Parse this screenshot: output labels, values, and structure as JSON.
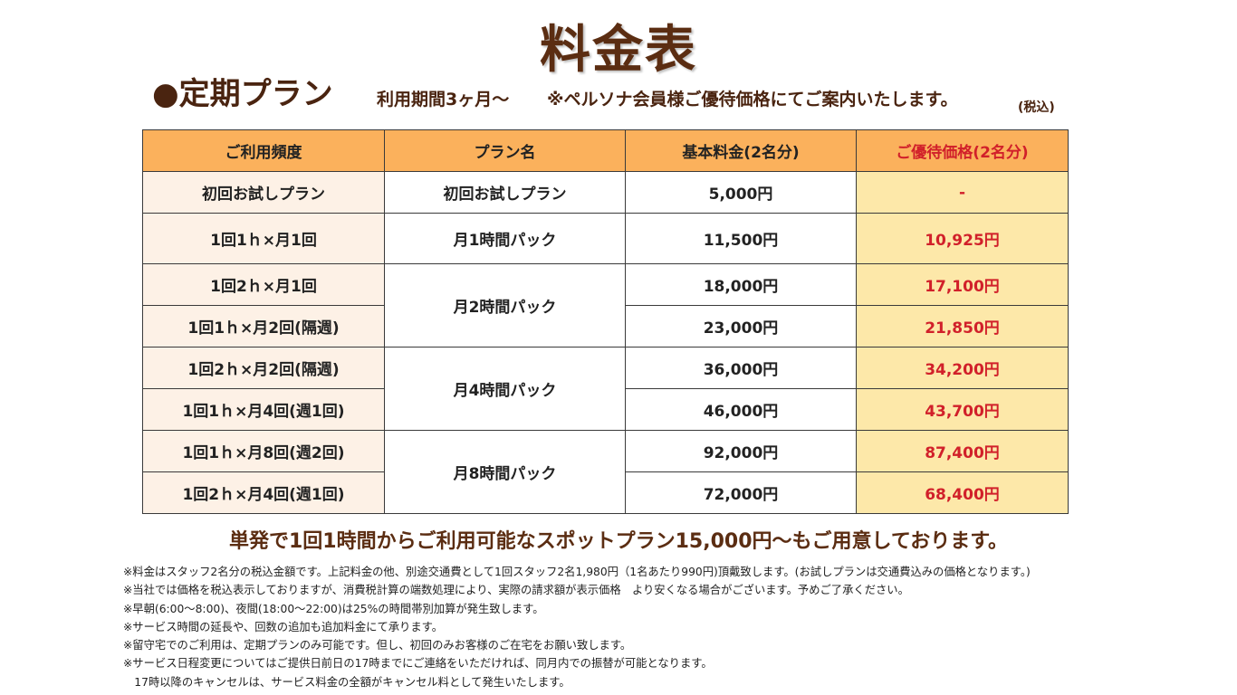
{
  "title": "料金表",
  "plan": {
    "heading": "●定期プラン",
    "period": "利用期間3ヶ月〜",
    "note": "※ペルソナ会員様ご優待価格にてご案内いたします。",
    "tax": "(税込)"
  },
  "table": {
    "headers": {
      "frequency": "ご利用頻度",
      "plan_name": "プラン名",
      "base_price": "基本料金(2名分)",
      "special_price": "ご優待価格(2名分)"
    },
    "rows": [
      {
        "frequency": "初回お試しプラン",
        "plan_name": "初回お試しプラン",
        "base_price": "5,000円",
        "special_price": "-"
      },
      {
        "frequency": "1回1ｈ×月1回",
        "plan_name": "月1時間パック",
        "base_price": "11,500円",
        "special_price": "10,925円"
      },
      {
        "frequency": "1回2ｈ×月1回",
        "plan_name": "月2時間パック",
        "base_price": "18,000円",
        "special_price": "17,100円"
      },
      {
        "frequency": "1回1ｈ×月2回(隔週)",
        "base_price": "23,000円",
        "special_price": "21,850円"
      },
      {
        "frequency": "1回2ｈ×月2回(隔週)",
        "plan_name": "月4時間パック",
        "base_price": "36,000円",
        "special_price": "34,200円"
      },
      {
        "frequency": "1回1ｈ×月4回(週1回)",
        "base_price": "46,000円",
        "special_price": "43,700円"
      },
      {
        "frequency": "1回1ｈ×月8回(週2回)",
        "plan_name": "月8時間パック",
        "base_price": "92,000円",
        "special_price": "87,400円"
      },
      {
        "frequency": "1回2ｈ×月4回(週1回)",
        "base_price": "72,000円",
        "special_price": "68,400円"
      }
    ]
  },
  "spot_plan": "単発で1回1時間からご利用可能なスポットプラン15,000円〜もご用意しております。",
  "notes": [
    "※料金はスタッフ2名分の税込金額です。上記料金の他、別途交通費として1回スタッフ2名1,980円（1名あたり990円)頂戴致します。(お試しプランは交通費込みの価格となります。)",
    "※当社では価格を税込表示しておりますが、消費税計算の端数処理により、実際の請求額が表示価格　より安くなる場合がございます。予めご了承ください。",
    "※早朝(6:00〜8:00)、夜間(18:00〜22:00)は25%の時間帯別加算が発生致します。",
    "※サービス時間の延長や、回数の追加も追加料金にて承ります。",
    "※留守宅でのご利用は、定期プランのみ可能です。但し、初回のみお客様のご在宅をお願い致します。",
    "※サービス日程変更についてはご提供日前日の17時までにご連絡をいただければ、同月内での振替が可能となります。",
    "　17時以降のキャンセルは、サービス料金の全額がキャンセル料として発生いたします。"
  ]
}
